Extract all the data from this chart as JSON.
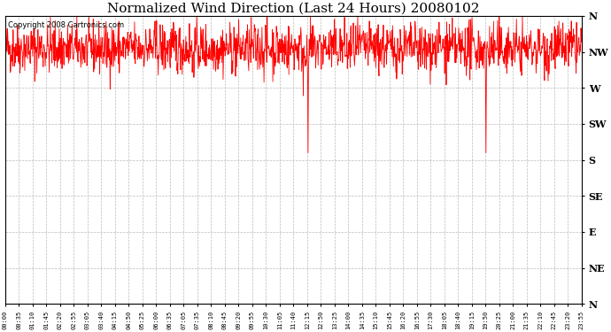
{
  "title": "Normalized Wind Direction (Last 24 Hours) 20080102",
  "copyright_text": "Copyright 2008 Cartronics.com",
  "line_color": "#ff0000",
  "background_color": "#ffffff",
  "plot_bg_color": "#ffffff",
  "grid_color": "#bbbbbb",
  "title_fontsize": 11,
  "ytick_labels": [
    "N",
    "NW",
    "W",
    "SW",
    "S",
    "SE",
    "E",
    "NE",
    "N"
  ],
  "ytick_values": [
    8,
    7,
    6,
    5,
    4,
    3,
    2,
    1,
    0
  ],
  "ylim": [
    0,
    8
  ],
  "xtick_labels": [
    "00:00",
    "00:35",
    "01:10",
    "01:45",
    "02:20",
    "02:55",
    "03:05",
    "03:40",
    "04:15",
    "04:50",
    "05:25",
    "06:00",
    "06:35",
    "07:05",
    "07:35",
    "08:10",
    "08:45",
    "09:20",
    "09:55",
    "10:30",
    "11:05",
    "11:40",
    "12:15",
    "12:50",
    "13:25",
    "14:00",
    "14:35",
    "15:10",
    "15:45",
    "16:20",
    "16:55",
    "17:30",
    "18:05",
    "18:40",
    "19:15",
    "19:50",
    "20:25",
    "21:00",
    "21:35",
    "22:10",
    "22:45",
    "23:20",
    "23:55"
  ],
  "seed": 42,
  "n_points": 1440,
  "base_value": 7.1,
  "noise_scale": 0.35,
  "spike_index_1": 756,
  "spike_value_1": 4.2,
  "spike_index_2": 1200,
  "spike_value_2": 4.2
}
